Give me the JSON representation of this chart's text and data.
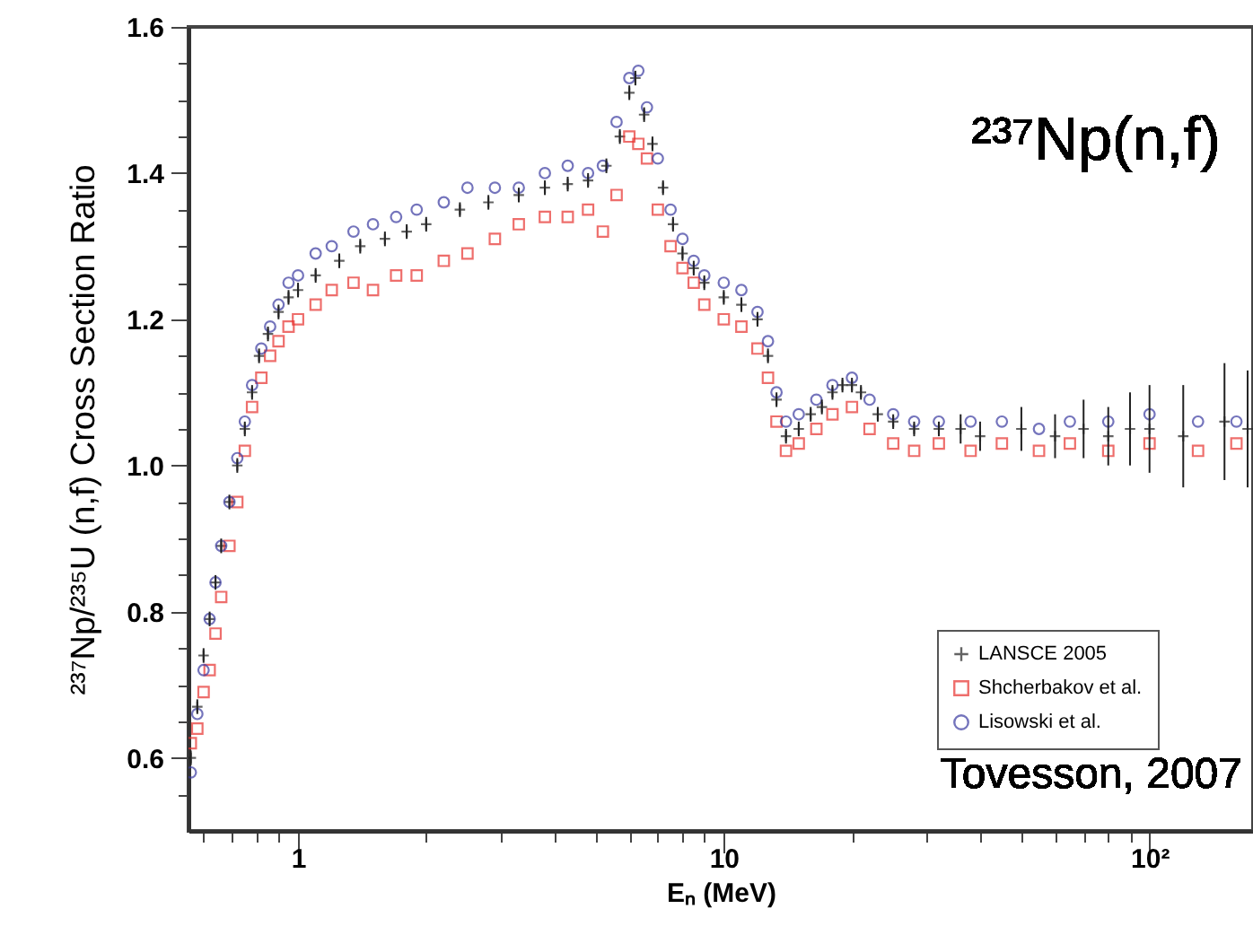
{
  "chart_data": {
    "type": "scatter",
    "xlabel": "Eₙ (MeV)",
    "ylabel": "²³⁷Np/²³⁵U (n,f) Cross Section Ratio",
    "annotations": [
      "²³⁷Np(n,f)",
      "Tovesson, 2007"
    ],
    "log": "x",
    "xlim": [
      0.553,
      175
    ],
    "xticks": [
      {
        "value": 0.6,
        "label": null
      },
      {
        "value": 0.7,
        "label": null
      },
      {
        "value": 0.8,
        "label": null
      },
      {
        "value": 0.9,
        "label": null
      },
      {
        "value": 1,
        "label": "1"
      },
      {
        "value": 2,
        "label": null
      },
      {
        "value": 3,
        "label": null
      },
      {
        "value": 4,
        "label": null
      },
      {
        "value": 5,
        "label": null
      },
      {
        "value": 6,
        "label": null
      },
      {
        "value": 7,
        "label": null
      },
      {
        "value": 8,
        "label": null
      },
      {
        "value": 9,
        "label": null
      },
      {
        "value": 10,
        "label": "10"
      },
      {
        "value": 20,
        "label": null
      },
      {
        "value": 30,
        "label": null
      },
      {
        "value": 40,
        "label": null
      },
      {
        "value": 50,
        "label": null
      },
      {
        "value": 60,
        "label": null
      },
      {
        "value": 70,
        "label": null
      },
      {
        "value": 80,
        "label": null
      },
      {
        "value": 90,
        "label": null
      },
      {
        "value": 100,
        "label": "10²"
      }
    ],
    "ylim": [
      0.5,
      1.6
    ],
    "yticks": [
      {
        "value": 0.55,
        "label": null
      },
      {
        "value": 0.6,
        "label": "0.6"
      },
      {
        "value": 0.65,
        "label": null
      },
      {
        "value": 0.7,
        "label": null
      },
      {
        "value": 0.75,
        "label": null
      },
      {
        "value": 0.8,
        "label": "0.8"
      },
      {
        "value": 0.85,
        "label": null
      },
      {
        "value": 0.9,
        "label": null
      },
      {
        "value": 0.95,
        "label": null
      },
      {
        "value": 1.0,
        "label": "1.0"
      },
      {
        "value": 1.05,
        "label": null
      },
      {
        "value": 1.1,
        "label": null
      },
      {
        "value": 1.15,
        "label": null
      },
      {
        "value": 1.2,
        "label": "1.2"
      },
      {
        "value": 1.25,
        "label": null
      },
      {
        "value": 1.3,
        "label": null
      },
      {
        "value": 1.35,
        "label": null
      },
      {
        "value": 1.4,
        "label": "1.4"
      },
      {
        "value": 1.45,
        "label": null
      },
      {
        "value": 1.5,
        "label": null
      },
      {
        "value": 1.55,
        "label": null
      },
      {
        "value": 1.6,
        "label": "1.6"
      }
    ],
    "legend": "bottom right",
    "series": [
      {
        "name": "LANSCE 2005",
        "color": "#222222",
        "marker": "cross",
        "x": [
          0.56,
          0.58,
          0.6,
          0.62,
          0.64,
          0.66,
          0.69,
          0.72,
          0.75,
          0.78,
          0.81,
          0.85,
          0.9,
          0.95,
          1.0,
          1.1,
          1.25,
          1.4,
          1.6,
          1.8,
          2.0,
          2.4,
          2.8,
          3.3,
          3.8,
          4.3,
          4.8,
          5.3,
          5.7,
          6.0,
          6.2,
          6.5,
          6.8,
          7.2,
          7.6,
          8,
          8.5,
          9,
          10,
          11,
          12,
          12.7,
          13.3,
          14,
          15,
          16,
          17,
          18,
          19,
          20,
          21,
          23,
          25,
          28,
          32,
          36,
          40,
          50,
          60,
          70,
          80,
          90,
          100,
          120,
          150,
          170
        ],
        "values": [
          0.6,
          0.67,
          0.74,
          0.79,
          0.84,
          0.89,
          0.95,
          1.0,
          1.05,
          1.1,
          1.15,
          1.18,
          1.21,
          1.23,
          1.24,
          1.26,
          1.28,
          1.3,
          1.31,
          1.32,
          1.33,
          1.35,
          1.36,
          1.37,
          1.38,
          1.385,
          1.39,
          1.41,
          1.45,
          1.51,
          1.53,
          1.48,
          1.44,
          1.38,
          1.33,
          1.29,
          1.27,
          1.25,
          1.23,
          1.22,
          1.2,
          1.15,
          1.09,
          1.04,
          1.05,
          1.07,
          1.08,
          1.1,
          1.11,
          1.11,
          1.1,
          1.07,
          1.06,
          1.05,
          1.05,
          1.05,
          1.04,
          1.05,
          1.04,
          1.05,
          1.04,
          1.05,
          1.05,
          1.04,
          1.06,
          1.05
        ],
        "errors": [
          0.01,
          0.01,
          0.01,
          0.01,
          0.01,
          0.01,
          0.01,
          0.01,
          0.01,
          0.01,
          0.01,
          0.01,
          0.01,
          0.01,
          0.01,
          0.01,
          0.01,
          0.01,
          0.01,
          0.01,
          0.01,
          0.01,
          0.01,
          0.01,
          0.01,
          0.01,
          0.01,
          0.01,
          0.01,
          0.01,
          0.01,
          0.01,
          0.01,
          0.01,
          0.01,
          0.01,
          0.01,
          0.01,
          0.01,
          0.01,
          0.01,
          0.01,
          0.01,
          0.01,
          0.01,
          0.01,
          0.01,
          0.01,
          0.01,
          0.01,
          0.01,
          0.01,
          0.01,
          0.01,
          0.01,
          0.02,
          0.02,
          0.03,
          0.03,
          0.04,
          0.04,
          0.05,
          0.06,
          0.07,
          0.08,
          0.08
        ]
      },
      {
        "name": "Shcherbakov et al.",
        "color": "#e8322e",
        "marker": "square",
        "x": [
          0.56,
          0.58,
          0.6,
          0.62,
          0.64,
          0.66,
          0.69,
          0.72,
          0.75,
          0.78,
          0.82,
          0.86,
          0.9,
          0.95,
          1.0,
          1.1,
          1.2,
          1.35,
          1.5,
          1.7,
          1.9,
          2.2,
          2.5,
          2.9,
          3.3,
          3.8,
          4.3,
          4.8,
          5.2,
          5.6,
          6.0,
          6.3,
          6.6,
          7.0,
          7.5,
          8,
          8.5,
          9,
          10,
          11,
          12,
          12.7,
          13.3,
          14,
          15,
          16.5,
          18,
          20,
          22,
          25,
          28,
          32,
          38,
          45,
          55,
          65,
          80,
          100,
          130,
          160
        ],
        "values": [
          0.62,
          0.64,
          0.69,
          0.72,
          0.77,
          0.82,
          0.89,
          0.95,
          1.02,
          1.08,
          1.12,
          1.15,
          1.17,
          1.19,
          1.2,
          1.22,
          1.24,
          1.25,
          1.24,
          1.26,
          1.26,
          1.28,
          1.29,
          1.31,
          1.33,
          1.34,
          1.34,
          1.35,
          1.32,
          1.37,
          1.45,
          1.44,
          1.42,
          1.35,
          1.3,
          1.27,
          1.25,
          1.22,
          1.2,
          1.19,
          1.16,
          1.12,
          1.06,
          1.02,
          1.03,
          1.05,
          1.07,
          1.08,
          1.05,
          1.03,
          1.02,
          1.03,
          1.02,
          1.03,
          1.02,
          1.03,
          1.02,
          1.03,
          1.02,
          1.03
        ]
      },
      {
        "name": "Lisowski et al.",
        "color": "#3a3aa0",
        "marker": "circle",
        "x": [
          0.56,
          0.58,
          0.6,
          0.62,
          0.64,
          0.66,
          0.69,
          0.72,
          0.75,
          0.78,
          0.82,
          0.86,
          0.9,
          0.95,
          1.0,
          1.1,
          1.2,
          1.35,
          1.5,
          1.7,
          1.9,
          2.2,
          2.5,
          2.9,
          3.3,
          3.8,
          4.3,
          4.8,
          5.2,
          5.6,
          6.0,
          6.3,
          6.6,
          7.0,
          7.5,
          8,
          8.5,
          9,
          10,
          11,
          12,
          12.7,
          13.3,
          14,
          15,
          16.5,
          18,
          20,
          22,
          25,
          28,
          32,
          38,
          45,
          55,
          65,
          80,
          100,
          130,
          160
        ],
        "values": [
          0.58,
          0.66,
          0.72,
          0.79,
          0.84,
          0.89,
          0.95,
          1.01,
          1.06,
          1.11,
          1.16,
          1.19,
          1.22,
          1.25,
          1.26,
          1.29,
          1.3,
          1.32,
          1.33,
          1.34,
          1.35,
          1.36,
          1.38,
          1.38,
          1.38,
          1.4,
          1.41,
          1.4,
          1.41,
          1.47,
          1.53,
          1.54,
          1.49,
          1.42,
          1.35,
          1.31,
          1.28,
          1.26,
          1.25,
          1.24,
          1.21,
          1.17,
          1.1,
          1.06,
          1.07,
          1.09,
          1.11,
          1.12,
          1.09,
          1.07,
          1.06,
          1.06,
          1.06,
          1.06,
          1.05,
          1.06,
          1.06,
          1.07,
          1.06,
          1.06
        ]
      }
    ]
  }
}
